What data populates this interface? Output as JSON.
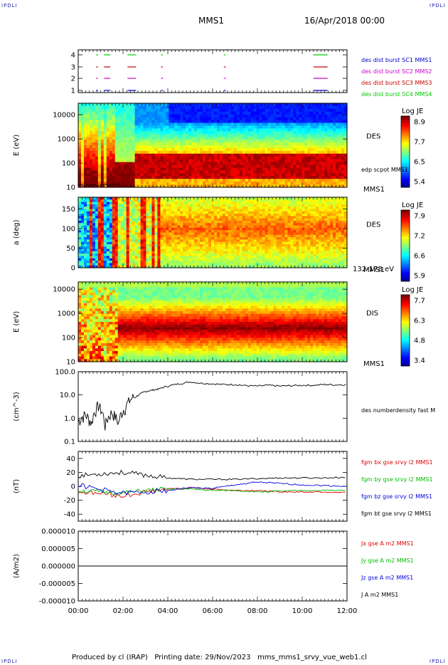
{
  "header": {
    "corner_label": "IPDLI",
    "spacecraft": "MMS1",
    "date": "16/Apr/2018 00:00"
  },
  "footer": {
    "text": "Produced by cl (IRAP)   Printing date: 29/Nov/2023   mms_mms1_srvy_vue_web1.cl"
  },
  "colors": {
    "mms1": "#0000cc",
    "mms2": "#cc00cc",
    "mms3": "#cc0000",
    "mms4": "#00cc00",
    "bx": "#dd0000",
    "by": "#00bb00",
    "bz": "#0000dd",
    "bt": "#000000"
  },
  "time_axis": {
    "ticks": [
      "00:00",
      "02:00",
      "04:00",
      "06:00",
      "08:00",
      "10:00",
      "12:00"
    ],
    "range_hours": [
      0,
      12
    ]
  },
  "chart_data": [
    {
      "id": "burst",
      "type": "timeline",
      "y_ticks": [
        "1",
        "2",
        "3",
        "4"
      ],
      "legend": [
        {
          "label": "des dist burst SC1 MMS1",
          "color": "#0000cc"
        },
        {
          "label": "des dist burst SC2 MMS2",
          "color": "#cc00cc"
        },
        {
          "label": "des dist burst SC3 MMS3",
          "color": "#cc0000"
        },
        {
          "label": "des dist burst SC4 MMS4",
          "color": "#00cc00"
        }
      ],
      "intervals_hours": [
        [
          0.8,
          0.85
        ],
        [
          1.15,
          1.4
        ],
        [
          2.2,
          2.55
        ],
        [
          3.7,
          3.75
        ],
        [
          6.5,
          6.55
        ],
        [
          10.5,
          11.1
        ]
      ]
    },
    {
      "id": "des_energy",
      "type": "heatmap",
      "ylabel": "E (eV)",
      "y_ticks": [
        "10",
        "100",
        "1000",
        "10000"
      ],
      "y_range": [
        10,
        30000
      ],
      "label": "DES",
      "sublabel": "MMS1",
      "overlay_label": "edp scpot MMS1",
      "colorbar": {
        "title": "Log JE",
        "ticks": [
          "8.9",
          "7.7",
          "6.5",
          "5.4"
        ]
      }
    },
    {
      "id": "des_pitch",
      "type": "heatmap",
      "ylabel": "a (deg)",
      "y_ticks": [
        "0",
        "50",
        "100",
        "150"
      ],
      "y_range": [
        0,
        180
      ],
      "label": "DES",
      "sublabel": "MMS1",
      "energy_band": "132-178 eV",
      "colorbar": {
        "title": "Log JE",
        "ticks": [
          "7.9",
          "7.2",
          "6.6",
          "5.9"
        ]
      }
    },
    {
      "id": "dis_energy",
      "type": "heatmap",
      "ylabel": "E (eV)",
      "y_ticks": [
        "10",
        "100",
        "1000",
        "10000"
      ],
      "y_range": [
        10,
        20000
      ],
      "label": "DIS",
      "sublabel": "MMS1",
      "colorbar": {
        "title": "Log JE",
        "ticks": [
          "7.7",
          "6.3",
          "4.8",
          "3.4"
        ]
      }
    },
    {
      "id": "density",
      "type": "line",
      "ylabel": "(cm^-3)",
      "y_scale": "log",
      "y_ticks": [
        "0.1",
        "1.0",
        "10.0",
        "100.0"
      ],
      "y_range": [
        0.1,
        100
      ],
      "legend": [
        {
          "label": "des numberdensity fast M",
          "color": "#000000"
        }
      ],
      "x_hours": [
        0.0,
        0.3,
        0.6,
        0.9,
        1.2,
        1.5,
        1.8,
        2.1,
        2.4,
        2.7,
        3.0,
        3.3,
        3.6,
        4.0,
        4.5,
        5.0,
        5.5,
        6.0,
        6.5,
        7.0,
        7.5,
        8.0,
        8.5,
        9.0,
        9.5,
        10.0,
        10.5,
        11.0,
        11.5,
        12.0
      ],
      "y_values": [
        0.6,
        1.2,
        0.5,
        3.0,
        0.4,
        1.5,
        0.5,
        2.5,
        6.0,
        10,
        14,
        16,
        18,
        24,
        30,
        36,
        32,
        30,
        28,
        28,
        25,
        24,
        26,
        24,
        25,
        26,
        26,
        28,
        27,
        28
      ]
    },
    {
      "id": "magnetic",
      "type": "line",
      "ylabel": "(nT)",
      "y_ticks": [
        "-40",
        "-20",
        "0",
        "20",
        "40"
      ],
      "y_range": [
        -50,
        50
      ],
      "x_hours": [
        0,
        1,
        2,
        3,
        4,
        5,
        6,
        7,
        8,
        9,
        10,
        11,
        12
      ],
      "series": [
        {
          "name": "fgm bx gse srvy l2 MMS1",
          "color": "#dd0000",
          "values": [
            -8,
            -10,
            -14,
            -8,
            -4,
            -2,
            -4,
            -6,
            -6,
            -8,
            -8,
            -8,
            -9
          ]
        },
        {
          "name": "fgm by gse srvy l2 MMS1",
          "color": "#00bb00",
          "values": [
            -6,
            -8,
            -10,
            -6,
            -4,
            -4,
            -6,
            -6,
            -8,
            -7,
            -6,
            -6,
            -6
          ]
        },
        {
          "name": "fgm bz gse srvy l2 MMS1",
          "color": "#0000dd",
          "values": [
            2,
            -5,
            -10,
            -8,
            -6,
            -2,
            -3,
            2,
            6,
            4,
            2,
            1,
            0
          ]
        },
        {
          "name": "fgm bt gse srvy l2 MMS1",
          "color": "#000000",
          "values": [
            15,
            18,
            20,
            16,
            12,
            10,
            10,
            10,
            11,
            12,
            12,
            12,
            13
          ]
        }
      ]
    },
    {
      "id": "current",
      "type": "line",
      "ylabel": "(A/m2)",
      "y_ticks": [
        "-0.000010",
        "-0.000005",
        "0.000000",
        "0.000005",
        "0.000010"
      ],
      "y_range": [
        -1e-05,
        1e-05
      ],
      "x_hours": [
        0,
        12
      ],
      "series": [
        {
          "name": "Jx gse A m2 MMS1",
          "color": "#dd0000",
          "values": [
            0,
            0
          ]
        },
        {
          "name": "Jy gse A m2 MMS1",
          "color": "#00bb00",
          "values": [
            0,
            0
          ]
        },
        {
          "name": "Jz gse A m2 MMS1",
          "color": "#0000dd",
          "values": [
            0,
            0
          ]
        },
        {
          "name": "J A m2 MMS1",
          "color": "#000000",
          "values": [
            0,
            0
          ]
        }
      ]
    }
  ]
}
